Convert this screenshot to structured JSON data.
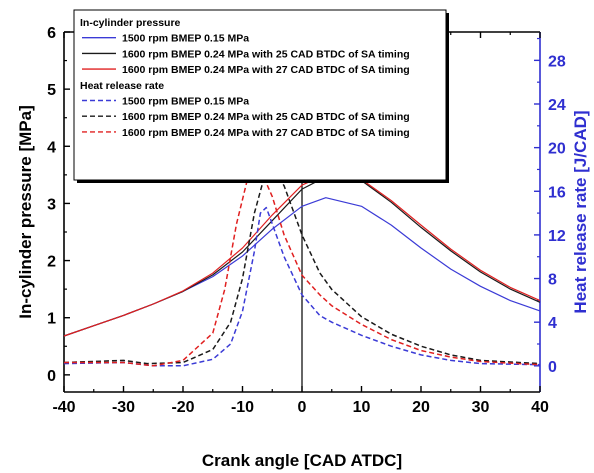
{
  "chart_data": {
    "type": "line",
    "xlabel": "Crank angle [CAD ATDC]",
    "ylabel": "In-cylinder pressure [MPa]",
    "y2label": "Heat release rate [J/CAD]",
    "xlim": [
      -40,
      40
    ],
    "ylim": [
      -0.3,
      6
    ],
    "y2lim": [
      -2.4,
      30.6
    ],
    "xticks": [
      -40,
      -30,
      -20,
      -10,
      0,
      10,
      20,
      30,
      40
    ],
    "yticks": [
      0,
      1,
      2,
      3,
      4,
      5,
      6
    ],
    "y2ticks": [
      0,
      4,
      8,
      12,
      16,
      20,
      24,
      28
    ],
    "grid": false,
    "legend_position": "top-left",
    "legend_groups": [
      {
        "title": "In-cylinder pressure",
        "entries": [
          0,
          1,
          2
        ]
      },
      {
        "title": "Heat release rate",
        "entries": [
          3,
          4,
          5
        ]
      }
    ],
    "series": [
      {
        "name": "1500 rpm BMEP 0.15 MPa",
        "axis": "left",
        "style": "solid",
        "color": "#3b3bd6",
        "x": [
          -40,
          -35,
          -30,
          -25,
          -20,
          -15,
          -10,
          -5,
          0,
          4,
          10,
          15,
          20,
          25,
          30,
          35,
          40
        ],
        "y": [
          0.68,
          0.86,
          1.04,
          1.24,
          1.46,
          1.72,
          2.08,
          2.55,
          2.95,
          3.1,
          2.95,
          2.62,
          2.22,
          1.85,
          1.55,
          1.3,
          1.12
        ]
      },
      {
        "name": "1600 rpm BMEP 0.24 MPa with 25 CAD BTDC of SA timing",
        "axis": "left",
        "style": "solid",
        "color": "#1a1a1a",
        "x": [
          -40,
          -35,
          -30,
          -25,
          -20,
          -15,
          -10,
          -5,
          0,
          5,
          10,
          15,
          20,
          25,
          30,
          35,
          40
        ],
        "y": [
          0.68,
          0.86,
          1.04,
          1.24,
          1.46,
          1.75,
          2.15,
          2.7,
          3.25,
          3.52,
          3.4,
          3.02,
          2.58,
          2.17,
          1.8,
          1.5,
          1.27
        ]
      },
      {
        "name": "1600 rpm BMEP 0.24 MPa with 27 CAD BTDC of SA timing",
        "axis": "left",
        "style": "solid",
        "color": "#e02020",
        "x": [
          -40,
          -35,
          -30,
          -25,
          -20,
          -15,
          -10,
          -5,
          0,
          5,
          10,
          15,
          20,
          25,
          30,
          35,
          40
        ],
        "y": [
          0.68,
          0.86,
          1.04,
          1.24,
          1.47,
          1.78,
          2.22,
          2.8,
          3.32,
          3.55,
          3.42,
          3.05,
          2.62,
          2.2,
          1.83,
          1.53,
          1.3
        ]
      },
      {
        "name": "1500 rpm BMEP 0.15 MPa",
        "axis": "right",
        "style": "dashed",
        "color": "#3b3bd6",
        "x": [
          -40,
          -30,
          -25,
          -20,
          -15,
          -12,
          -10,
          -8,
          -7,
          -6,
          -5,
          -3,
          0,
          3,
          5,
          10,
          15,
          20,
          25,
          30,
          40
        ],
        "y": [
          0.2,
          0.3,
          0.0,
          0.0,
          0.6,
          2.0,
          5.0,
          10.5,
          14.0,
          14.5,
          13.0,
          10.0,
          6.5,
          4.6,
          4.0,
          2.8,
          1.8,
          1.0,
          0.5,
          0.2,
          0.1
        ]
      },
      {
        "name": "1600 rpm BMEP 0.24 MPa with 25 CAD BTDC of SA timing",
        "axis": "right",
        "style": "dashed",
        "color": "#1a1a1a",
        "x": [
          -40,
          -30,
          -26,
          -20,
          -15,
          -12,
          -10,
          -8,
          -6,
          -5,
          -3,
          0,
          3,
          5,
          10,
          15,
          20,
          25,
          30,
          40
        ],
        "y": [
          0.3,
          0.5,
          0.2,
          0.3,
          1.5,
          4.0,
          8.0,
          14.0,
          18.0,
          18.2,
          16.5,
          12.0,
          8.5,
          7.0,
          4.5,
          2.9,
          1.8,
          1.0,
          0.5,
          0.2
        ]
      },
      {
        "name": "1600 rpm BMEP 0.24 MPa with 27 CAD BTDC of SA timing",
        "axis": "right",
        "style": "dashed",
        "color": "#e02020",
        "x": [
          -40,
          -30,
          -25,
          -20,
          -15,
          -13,
          -11,
          -9,
          -8,
          -7,
          -5,
          -3,
          0,
          3,
          5,
          10,
          15,
          20,
          25,
          30,
          40
        ],
        "y": [
          0.3,
          0.3,
          0.0,
          0.5,
          3.0,
          7.0,
          13.0,
          17.5,
          18.5,
          18.0,
          15.5,
          12.0,
          8.3,
          6.5,
          5.5,
          3.8,
          2.4,
          1.4,
          0.8,
          0.4,
          0.1
        ]
      }
    ]
  }
}
